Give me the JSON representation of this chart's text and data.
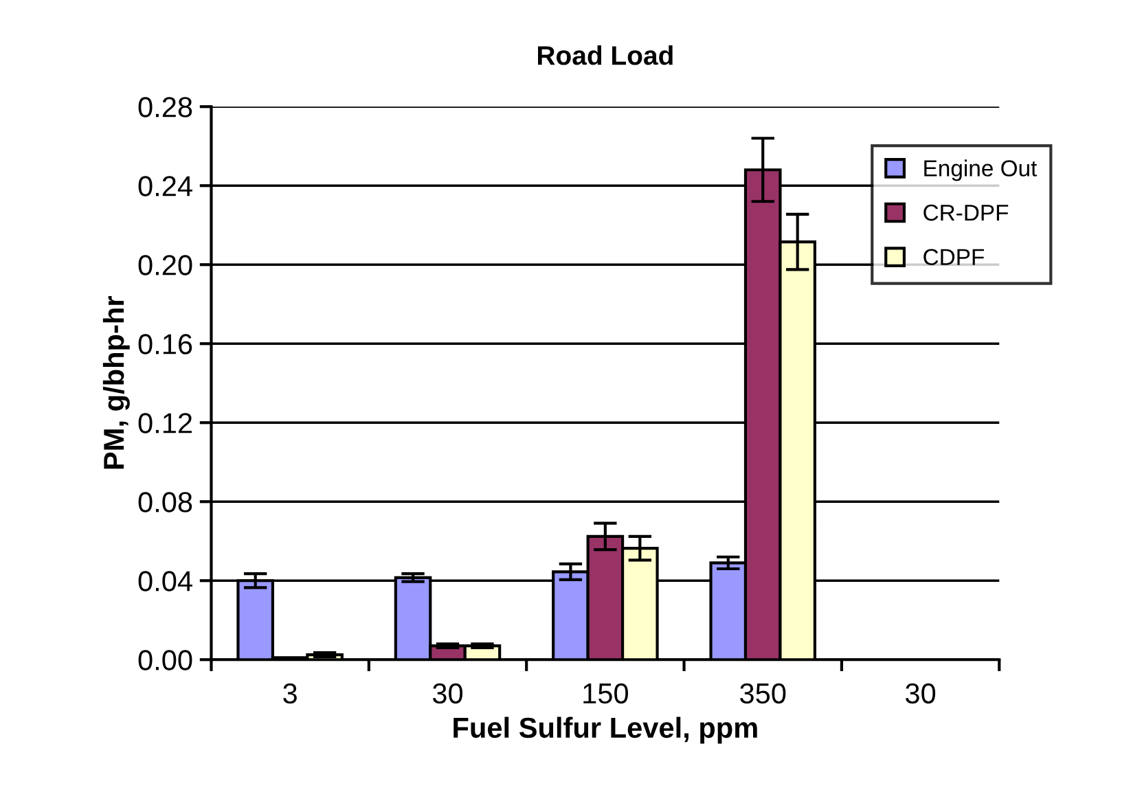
{
  "chart_data": {
    "type": "bar",
    "title": "Road Load",
    "xlabel": "Fuel Sulfur Level, ppm",
    "ylabel": "PM, g/bhp-hr",
    "categories": [
      "3",
      "30",
      "150",
      "350",
      "30"
    ],
    "series": [
      {
        "name": "Engine Out",
        "color": "#9999ff",
        "values": [
          0.04,
          0.0415,
          0.0445,
          0.049,
          null
        ],
        "errors": [
          0.0035,
          0.002,
          0.004,
          0.003,
          null
        ]
      },
      {
        "name": "CR-DPF",
        "color": "#993366",
        "values": [
          0.001,
          0.007,
          0.0624,
          0.248,
          null
        ],
        "errors": [
          null,
          0.001,
          0.0067,
          0.016,
          null
        ]
      },
      {
        "name": "CDPF",
        "color": "#ffffcc",
        "values": [
          0.0025,
          0.007,
          0.0564,
          0.2115,
          null
        ],
        "errors": [
          0.001,
          0.001,
          0.006,
          0.014,
          null
        ]
      }
    ],
    "ylim": [
      0,
      0.28
    ],
    "yticks": [
      {
        "value": 0,
        "label": "0.00"
      },
      {
        "value": 0.04,
        "label": "0.04"
      },
      {
        "value": 0.08,
        "label": "0.08"
      },
      {
        "value": 0.12,
        "label": "0.12"
      },
      {
        "value": 0.16,
        "label": "0.16"
      },
      {
        "value": 0.2,
        "label": "0.20"
      },
      {
        "value": 0.24,
        "label": "0.24"
      },
      {
        "value": 0.28,
        "label": "0.28"
      }
    ],
    "grid": "y",
    "legend": "top right"
  }
}
